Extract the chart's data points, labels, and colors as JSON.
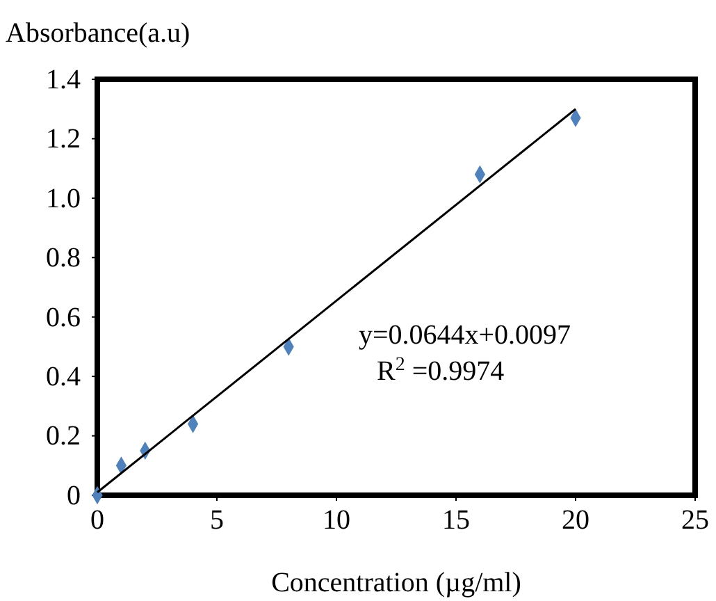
{
  "chart_data": {
    "type": "scatter",
    "ylabel": "Absorbance(a.u)",
    "xlabel": "Concentration (µg/ml)",
    "xlim": [
      0,
      25
    ],
    "xticks": [
      0,
      5,
      10,
      15,
      20,
      25
    ],
    "ylim": [
      0,
      1.4
    ],
    "yticks": [
      0,
      {
        "value": 0.2,
        "label": "0.2"
      },
      {
        "value": 0.4,
        "label": "0.4"
      },
      {
        "value": 0.6,
        "label": "0.6"
      },
      {
        "value": 0.8,
        "label": "0.8"
      },
      {
        "value": 1.0,
        "label": "1.0"
      },
      {
        "value": 1.2,
        "label": "1.2"
      },
      {
        "value": 1.4,
        "label": "1.4"
      }
    ],
    "grid": false,
    "series": [
      {
        "marker": "diamond",
        "color": "#4f81bd",
        "x": [
          0,
          1,
          2,
          4,
          8,
          16,
          20
        ],
        "values": [
          0,
          0.1,
          0.15,
          0.24,
          0.5,
          1.08,
          1.27
        ]
      },
      {
        "type": "line",
        "marker": "none",
        "color": "#000000",
        "x": [
          0,
          20
        ],
        "values": [
          0.01,
          1.3
        ]
      }
    ],
    "annotations": [
      "y=0.0644x+0.0097",
      "R$^{2}$ =0.9974"
    ]
  }
}
